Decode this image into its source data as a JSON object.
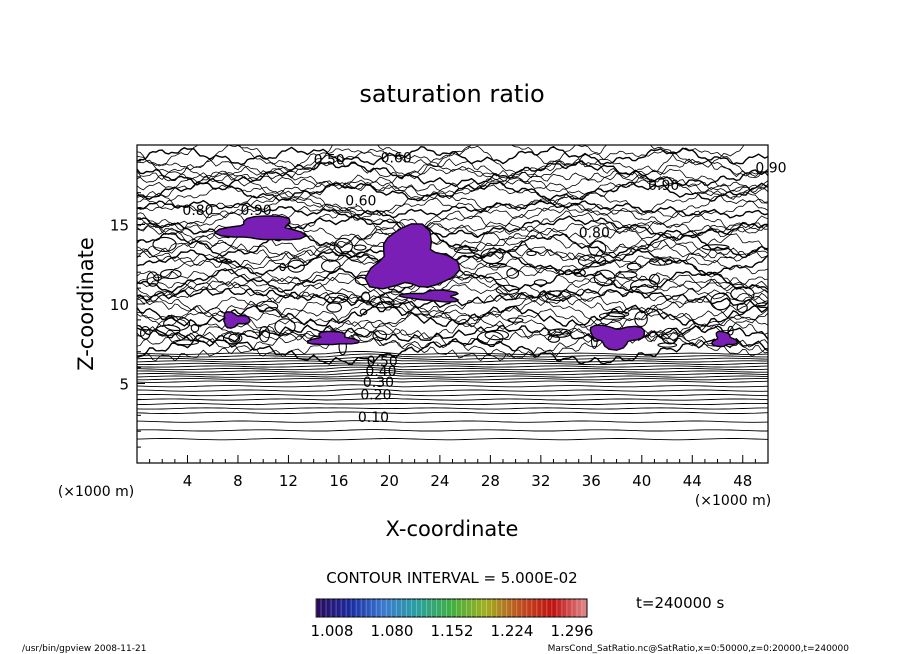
{
  "chart_data": {
    "type": "contour",
    "title": "saturation ratio",
    "xlabel": "X-coordinate",
    "ylabel": "Z-coordinate",
    "x_unit": "(×1000 m)",
    "y_unit": "(×1000 m)",
    "xlim": [
      0,
      50
    ],
    "ylim": [
      0,
      20
    ],
    "x_ticks": [
      4,
      8,
      12,
      16,
      20,
      24,
      28,
      32,
      36,
      40,
      44,
      48
    ],
    "y_ticks": [
      5,
      10,
      15
    ],
    "contour_interval_text": "CONTOUR INTERVAL = 5.000E-02",
    "contour_labels_lower": [
      {
        "text": "0.10",
        "x": 17.5,
        "z": 2.9
      },
      {
        "text": "0.20",
        "x": 17.7,
        "z": 4.3
      },
      {
        "text": "0.30",
        "x": 17.9,
        "z": 5.1
      },
      {
        "text": "0.40",
        "x": 18.1,
        "z": 5.8
      },
      {
        "text": "0.50",
        "x": 18.2,
        "z": 6.4
      }
    ],
    "contour_labels_upper": [
      {
        "text": "0.50",
        "x": 14.0,
        "z": 19.1
      },
      {
        "text": "0.60",
        "x": 19.3,
        "z": 19.2
      },
      {
        "text": "0.80",
        "x": 3.6,
        "z": 15.9
      },
      {
        "text": "0.90",
        "x": 8.2,
        "z": 15.9
      },
      {
        "text": "0.60",
        "x": 16.5,
        "z": 16.5
      },
      {
        "text": "0.80",
        "x": 35.0,
        "z": 14.5
      },
      {
        "text": "0.90",
        "x": 40.5,
        "z": 17.5
      },
      {
        "text": "0.90",
        "x": 49.0,
        "z": 18.6
      }
    ],
    "supersaturated_regions_S_gt_1": [
      {
        "x": [
          6.5,
          13.5
        ],
        "z": [
          13.8,
          15.6
        ]
      },
      {
        "x": [
          18.0,
          25.5
        ],
        "z": [
          10.4,
          15.0
        ]
      },
      {
        "x": [
          6.5,
          9.0
        ],
        "z": [
          8.5,
          9.5
        ]
      },
      {
        "x": [
          35.5,
          40.5
        ],
        "z": [
          7.2,
          8.8
        ]
      },
      {
        "x": [
          13.5,
          17.5
        ],
        "z": [
          7.3,
          8.3
        ]
      },
      {
        "x": [
          21.0,
          26.0
        ],
        "z": [
          10.1,
          10.9
        ]
      },
      {
        "x": [
          45.5,
          47.5
        ],
        "z": [
          7.2,
          8.3
        ]
      }
    ],
    "colorbar": {
      "tick_labels": [
        "1.008",
        "1.080",
        "1.152",
        "1.224",
        "1.296"
      ],
      "range": [
        1.008,
        1.296
      ],
      "colormap": [
        "#2a0a5a",
        "#1a2aa0",
        "#3a7ad0",
        "#2aa0a0",
        "#40b040",
        "#a0b020",
        "#c05020",
        "#c01010",
        "#e08a8a"
      ]
    },
    "fill_color": "#7a1fb5",
    "time_label": "t=240000 s"
  },
  "footer": {
    "left": "/usr/bin/gpview   2008-11-21",
    "right": "MarsCond_SatRatio.nc@SatRatio,x=0:50000,z=0:20000,t=240000"
  }
}
